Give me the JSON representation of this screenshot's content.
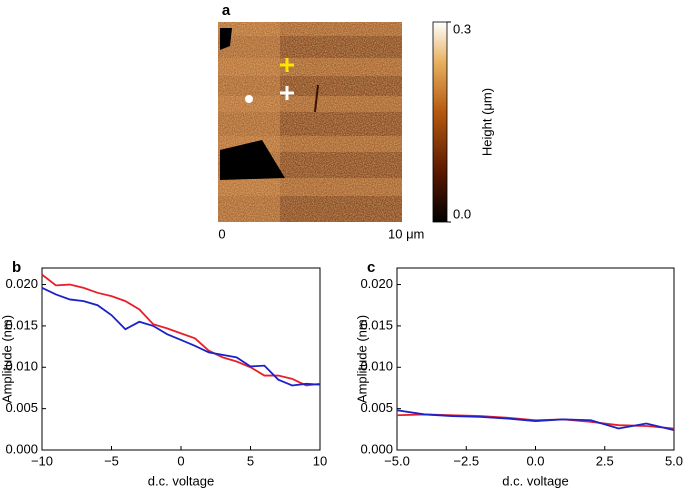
{
  "image_panel": {
    "panel_label": "a",
    "x_labels": [
      "0",
      "10 μm"
    ],
    "colorbar_label": "Height (μm)",
    "colorbar_lim": [
      0,
      0.3
    ],
    "colorbar_ticks": [
      {
        "value": 0,
        "label": "0.0"
      },
      {
        "value": 0.3,
        "label": "0.3"
      }
    ]
  },
  "chart_data": [
    {
      "type": "line",
      "panel_label": "b",
      "xlabel": "d.c. voltage",
      "ylabel": "Amplitude (nm)",
      "xlim": [
        -10,
        10
      ],
      "xticks": [
        {
          "value": -10,
          "label": "−10"
        },
        {
          "value": -5,
          "label": "−5"
        },
        0,
        5,
        10
      ],
      "ylim": [
        0,
        0.022
      ],
      "yticks": [
        {
          "value": 0,
          "label": "0.000"
        },
        {
          "value": 0.005,
          "label": "0.005"
        },
        {
          "value": 0.01,
          "label": "0.010"
        },
        {
          "value": 0.015,
          "label": "0.015"
        },
        {
          "value": 0.02,
          "label": "0.020"
        }
      ],
      "x": [
        -10,
        -9,
        -8,
        -7,
        -6,
        -5,
        -4,
        -3,
        -2,
        -1,
        0,
        1,
        2,
        3,
        4,
        5,
        6,
        7,
        8,
        9,
        10
      ],
      "series": [
        {
          "color": "#e8202a",
          "values": [
            0.0212,
            0.0199,
            0.02,
            0.0196,
            0.019,
            0.0186,
            0.018,
            0.017,
            0.0152,
            0.0147,
            0.0141,
            0.0135,
            0.012,
            0.0112,
            0.0107,
            0.01,
            0.009,
            0.009,
            0.0086,
            0.0078,
            0.008
          ]
        },
        {
          "color": "#1a22c8",
          "values": [
            0.0196,
            0.0188,
            0.0182,
            0.018,
            0.0175,
            0.0163,
            0.0146,
            0.0155,
            0.015,
            0.014,
            0.0133,
            0.0126,
            0.0118,
            0.0115,
            0.0112,
            0.0101,
            0.0102,
            0.0085,
            0.0078,
            0.008,
            0.0079
          ]
        }
      ]
    },
    {
      "type": "line",
      "panel_label": "c",
      "xlabel": "d.c. voltage",
      "ylabel": "Amplitude (nm)",
      "xlim": [
        -5,
        5
      ],
      "xticks": [
        {
          "value": -5,
          "label": "−5.0"
        },
        {
          "value": -2.5,
          "label": "−2.5"
        },
        {
          "value": 0,
          "label": "0.0"
        },
        2.5,
        {
          "value": 5,
          "label": "5.0"
        }
      ],
      "ylim": [
        0,
        0.022
      ],
      "yticks": [
        {
          "value": 0,
          "label": "0.000"
        },
        {
          "value": 0.005,
          "label": "0.005"
        },
        {
          "value": 0.01,
          "label": "0.010"
        },
        {
          "value": 0.015,
          "label": "0.015"
        },
        {
          "value": 0.02,
          "label": "0.020"
        }
      ],
      "x": [
        -5,
        -4,
        -3,
        -2,
        -1,
        0,
        1,
        2,
        3,
        4,
        5
      ],
      "series": [
        {
          "color": "#e8202a",
          "values": [
            0.0042,
            0.0043,
            0.0042,
            0.0041,
            0.0039,
            0.0036,
            0.0037,
            0.0034,
            0.003,
            0.0029,
            0.0026
          ]
        },
        {
          "color": "#1a22c8",
          "values": [
            0.0048,
            0.0043,
            0.0041,
            0.004,
            0.0038,
            0.0035,
            0.0037,
            0.0036,
            0.0026,
            0.0032,
            0.0024
          ]
        }
      ]
    }
  ]
}
